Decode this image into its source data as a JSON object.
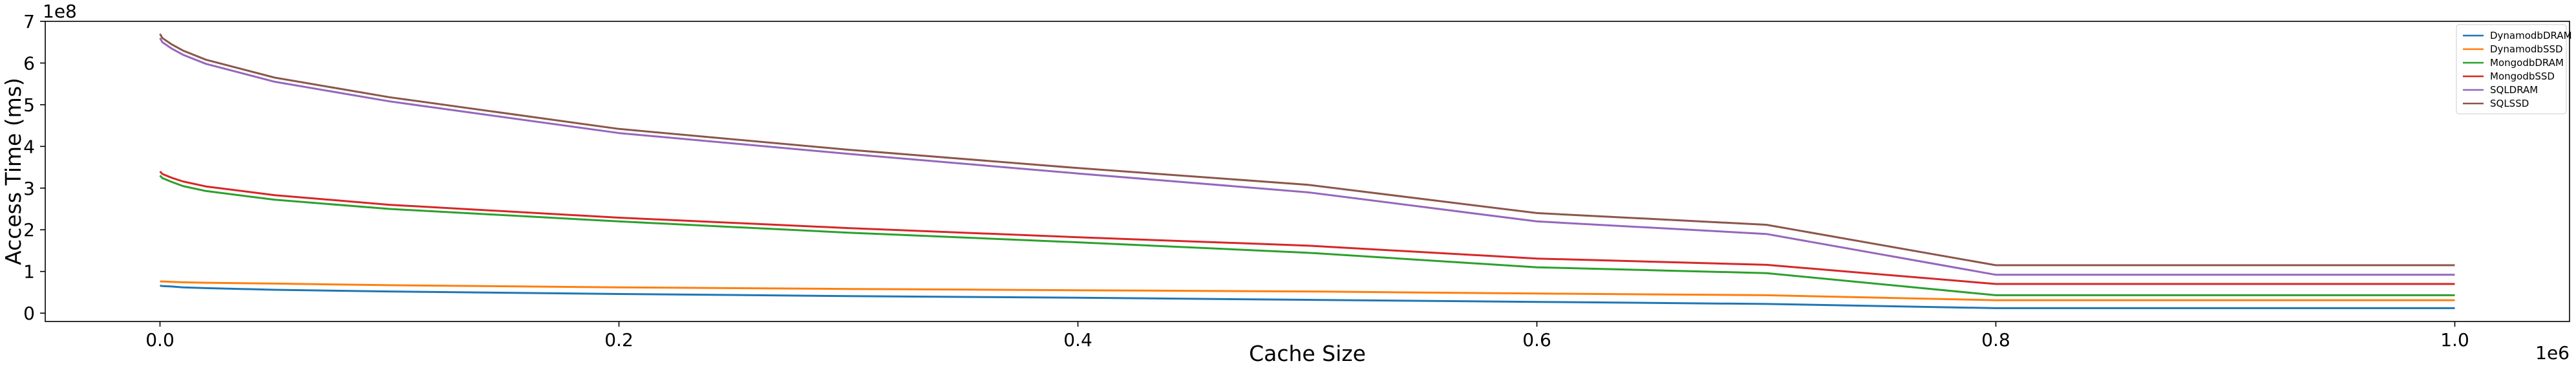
{
  "chart_data": {
    "type": "line",
    "title": "",
    "xlabel": "Cache Size",
    "ylabel": "Access Time (ms)",
    "x_offset_text": "1e6",
    "y_offset_text": "1e8",
    "xlim": [
      -0.05,
      1.05
    ],
    "ylim": [
      -0.2,
      7.0
    ],
    "x_ticks": [
      0.0,
      0.2,
      0.4,
      0.6,
      0.8,
      1.0
    ],
    "x_tick_labels": [
      "0.0",
      "0.2",
      "0.4",
      "0.6",
      "0.8",
      "1.0"
    ],
    "y_ticks": [
      0,
      1,
      2,
      3,
      4,
      5,
      6,
      7
    ],
    "y_tick_labels": [
      "0",
      "1",
      "2",
      "3",
      "4",
      "5",
      "6",
      "7"
    ],
    "grid": false,
    "legend_position": "top-right",
    "x": [
      0.0,
      0.001,
      0.005,
      0.01,
      0.02,
      0.05,
      0.1,
      0.2,
      0.3,
      0.4,
      0.5,
      0.6,
      0.7,
      0.8,
      0.9,
      1.0
    ],
    "series": [
      {
        "name": "DynamodbDRAM",
        "color": "#1f77b4",
        "values": [
          0.66,
          0.65,
          0.64,
          0.62,
          0.6,
          0.56,
          0.52,
          0.46,
          0.41,
          0.37,
          0.32,
          0.27,
          0.22,
          0.12,
          0.12,
          0.12
        ]
      },
      {
        "name": "DynamodbSSD",
        "color": "#ff7f0e",
        "values": [
          0.76,
          0.76,
          0.75,
          0.74,
          0.73,
          0.71,
          0.67,
          0.62,
          0.58,
          0.55,
          0.52,
          0.47,
          0.43,
          0.31,
          0.31,
          0.31
        ]
      },
      {
        "name": "MongodbDRAM",
        "color": "#2ca02c",
        "values": [
          3.3,
          3.24,
          3.15,
          3.05,
          2.93,
          2.72,
          2.5,
          2.2,
          1.93,
          1.7,
          1.45,
          1.1,
          0.96,
          0.43,
          0.43,
          0.43
        ]
      },
      {
        "name": "MongodbSSD",
        "color": "#d62728",
        "values": [
          3.4,
          3.34,
          3.25,
          3.16,
          3.04,
          2.83,
          2.6,
          2.29,
          2.04,
          1.82,
          1.62,
          1.31,
          1.16,
          0.7,
          0.7,
          0.7
        ]
      },
      {
        "name": "SQLDRAM",
        "color": "#9467bd",
        "values": [
          6.6,
          6.5,
          6.35,
          6.2,
          5.98,
          5.55,
          5.08,
          4.32,
          3.82,
          3.35,
          2.9,
          2.2,
          1.9,
          0.92,
          0.92,
          0.92
        ]
      },
      {
        "name": "SQLSSD",
        "color": "#8c564b",
        "values": [
          6.7,
          6.6,
          6.45,
          6.3,
          6.08,
          5.65,
          5.18,
          4.42,
          3.92,
          3.48,
          3.08,
          2.4,
          2.12,
          1.15,
          1.15,
          1.15
        ]
      }
    ]
  }
}
